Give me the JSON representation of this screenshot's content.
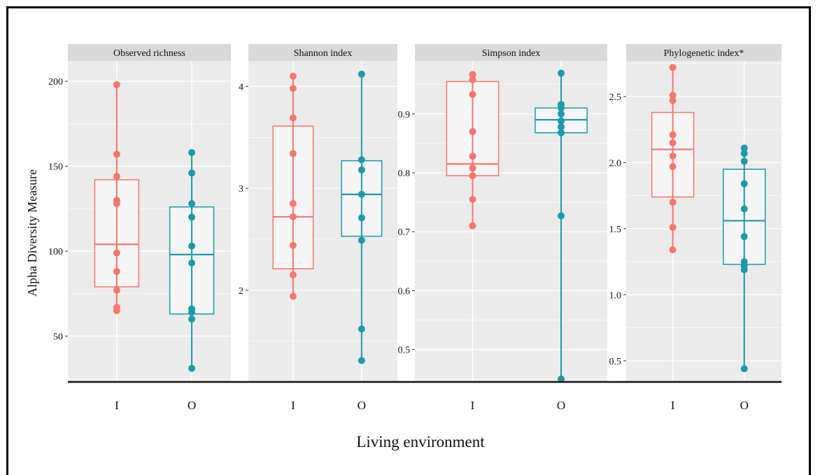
{
  "chart_data": {
    "type": "box",
    "ylabel": "Alpha Diversity Measure",
    "xlabel": "Living environment",
    "groups": [
      "I",
      "O"
    ],
    "colors": {
      "I": "#F8766D",
      "O": "#1C9AAA"
    },
    "grid": true,
    "panels": [
      {
        "title": "Observed richness",
        "ylim": [
          23,
          212
        ],
        "yticks": [
          "50",
          "100",
          "150",
          "200"
        ],
        "boxes": {
          "I": {
            "q1": 79,
            "median": 104,
            "q3": 142,
            "whisker_low": 65,
            "whisker_high": 198,
            "points": [
              198,
              157,
              144,
              130,
              128,
              99,
              88,
              77,
              67,
              65
            ]
          },
          "O": {
            "q1": 63,
            "median": 98,
            "q3": 126,
            "whisker_low": 31,
            "whisker_high": 158,
            "points": [
              158,
              146,
              128,
              120,
              103,
              93,
              66,
              64,
              60,
              31
            ]
          }
        }
      },
      {
        "title": "Shannon index",
        "ylim": [
          1.1,
          4.25
        ],
        "yticks": [
          "2",
          "3",
          "4"
        ],
        "boxes": {
          "I": {
            "q1": 2.21,
            "median": 2.72,
            "q3": 3.61,
            "whisker_low": 1.94,
            "whisker_high": 4.1,
            "points": [
              4.1,
              3.98,
              3.69,
              3.34,
              2.85,
              2.72,
              2.44,
              2.15,
              1.94
            ]
          },
          "O": {
            "q1": 2.53,
            "median": 2.94,
            "q3": 3.27,
            "whisker_low": 1.31,
            "whisker_high": 4.12,
            "points": [
              4.12,
              3.28,
              3.18,
              2.94,
              2.71,
              2.49,
              1.62,
              1.31
            ]
          }
        }
      },
      {
        "title": "Simpson index",
        "ylim": [
          0.445,
          0.99
        ],
        "yticks": [
          "0.5",
          "0.6",
          "0.7",
          "0.8",
          "0.9"
        ],
        "boxes": {
          "I": {
            "q1": 0.795,
            "median": 0.815,
            "q3": 0.955,
            "whisker_low": 0.71,
            "whisker_high": 0.967,
            "points": [
              0.967,
              0.958,
              0.933,
              0.87,
              0.828,
              0.808,
              0.795,
              0.755,
              0.71
            ]
          },
          "O": {
            "q1": 0.868,
            "median": 0.89,
            "q3": 0.91,
            "whisker_low": 0.45,
            "whisker_high": 0.969,
            "points": [
              0.969,
              0.916,
              0.91,
              0.9,
              0.888,
              0.878,
              0.868,
              0.727,
              0.45
            ]
          }
        }
      },
      {
        "title": "Phylogenetic index*",
        "ylim": [
          0.34,
          2.77
        ],
        "yticks": [
          "0.5",
          "1.0",
          "1.5",
          "2.0",
          "2.5"
        ],
        "boxes": {
          "I": {
            "q1": 1.74,
            "median": 2.1,
            "q3": 2.38,
            "whisker_low": 1.34,
            "whisker_high": 2.72,
            "points": [
              2.72,
              2.51,
              2.47,
              2.21,
              2.15,
              2.05,
              1.97,
              1.7,
              1.51,
              1.34
            ]
          },
          "O": {
            "q1": 1.23,
            "median": 1.56,
            "q3": 1.95,
            "whisker_low": 0.44,
            "whisker_high": 2.11,
            "points": [
              2.11,
              2.07,
              2.01,
              1.84,
              1.65,
              1.44,
              1.25,
              1.22,
              1.19,
              0.44
            ]
          }
        }
      }
    ]
  }
}
